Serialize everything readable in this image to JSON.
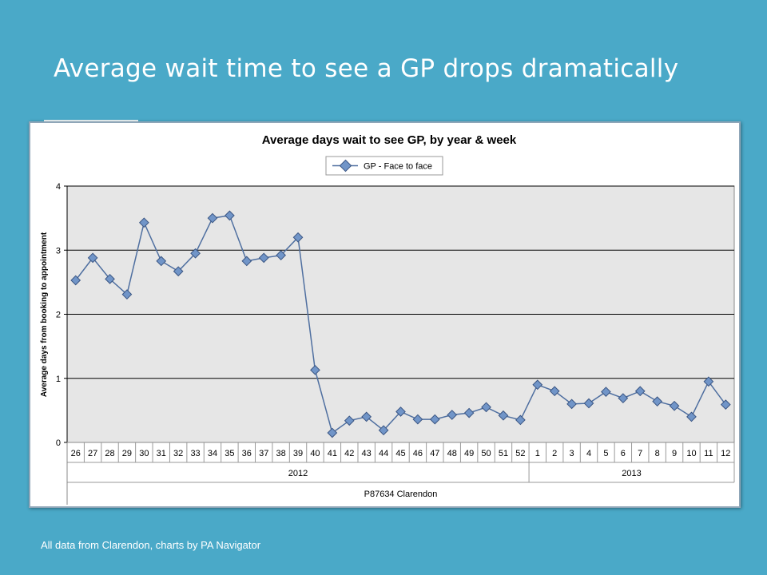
{
  "slide": {
    "title": "Average wait time to see a GP drops dramatically",
    "footer": "All data from Clarendon, charts by PA Navigator"
  },
  "colors": {
    "background": "#4aa9c8",
    "plot_area": "#e6e6e6",
    "series_line": "#4f6fa0",
    "marker_fill": "#7195c8",
    "marker_stroke": "#3b5683"
  },
  "chart_data": {
    "type": "line",
    "title": "Average days wait to see GP, by year & week",
    "ylabel": "Average days from booking to appointment",
    "xlabel": "",
    "ylim": [
      0,
      4
    ],
    "yticks": [
      0,
      1,
      2,
      3,
      4
    ],
    "grid": true,
    "legend_position": "top-center",
    "categories": [
      "26",
      "27",
      "28",
      "29",
      "30",
      "31",
      "32",
      "33",
      "34",
      "35",
      "36",
      "37",
      "38",
      "39",
      "40",
      "41",
      "42",
      "43",
      "44",
      "45",
      "46",
      "47",
      "48",
      "49",
      "50",
      "51",
      "52",
      "1",
      "2",
      "3",
      "4",
      "5",
      "6",
      "7",
      "8",
      "9",
      "10",
      "11",
      "12"
    ],
    "groups": [
      {
        "label": "2012",
        "count": 27
      },
      {
        "label": "2013",
        "count": 12
      }
    ],
    "outer_group": "P87634 Clarendon",
    "series": [
      {
        "name": "GP - Face to face",
        "values": [
          2.53,
          2.88,
          2.55,
          2.31,
          3.43,
          2.83,
          2.67,
          2.95,
          3.5,
          3.54,
          2.83,
          2.88,
          2.92,
          3.2,
          1.13,
          0.15,
          0.34,
          0.4,
          0.19,
          0.48,
          0.36,
          0.36,
          0.43,
          0.46,
          0.55,
          0.42,
          0.35,
          0.9,
          0.8,
          0.6,
          0.61,
          0.79,
          0.69,
          0.8,
          0.64,
          0.57,
          0.4,
          0.95,
          0.59
        ]
      }
    ]
  }
}
